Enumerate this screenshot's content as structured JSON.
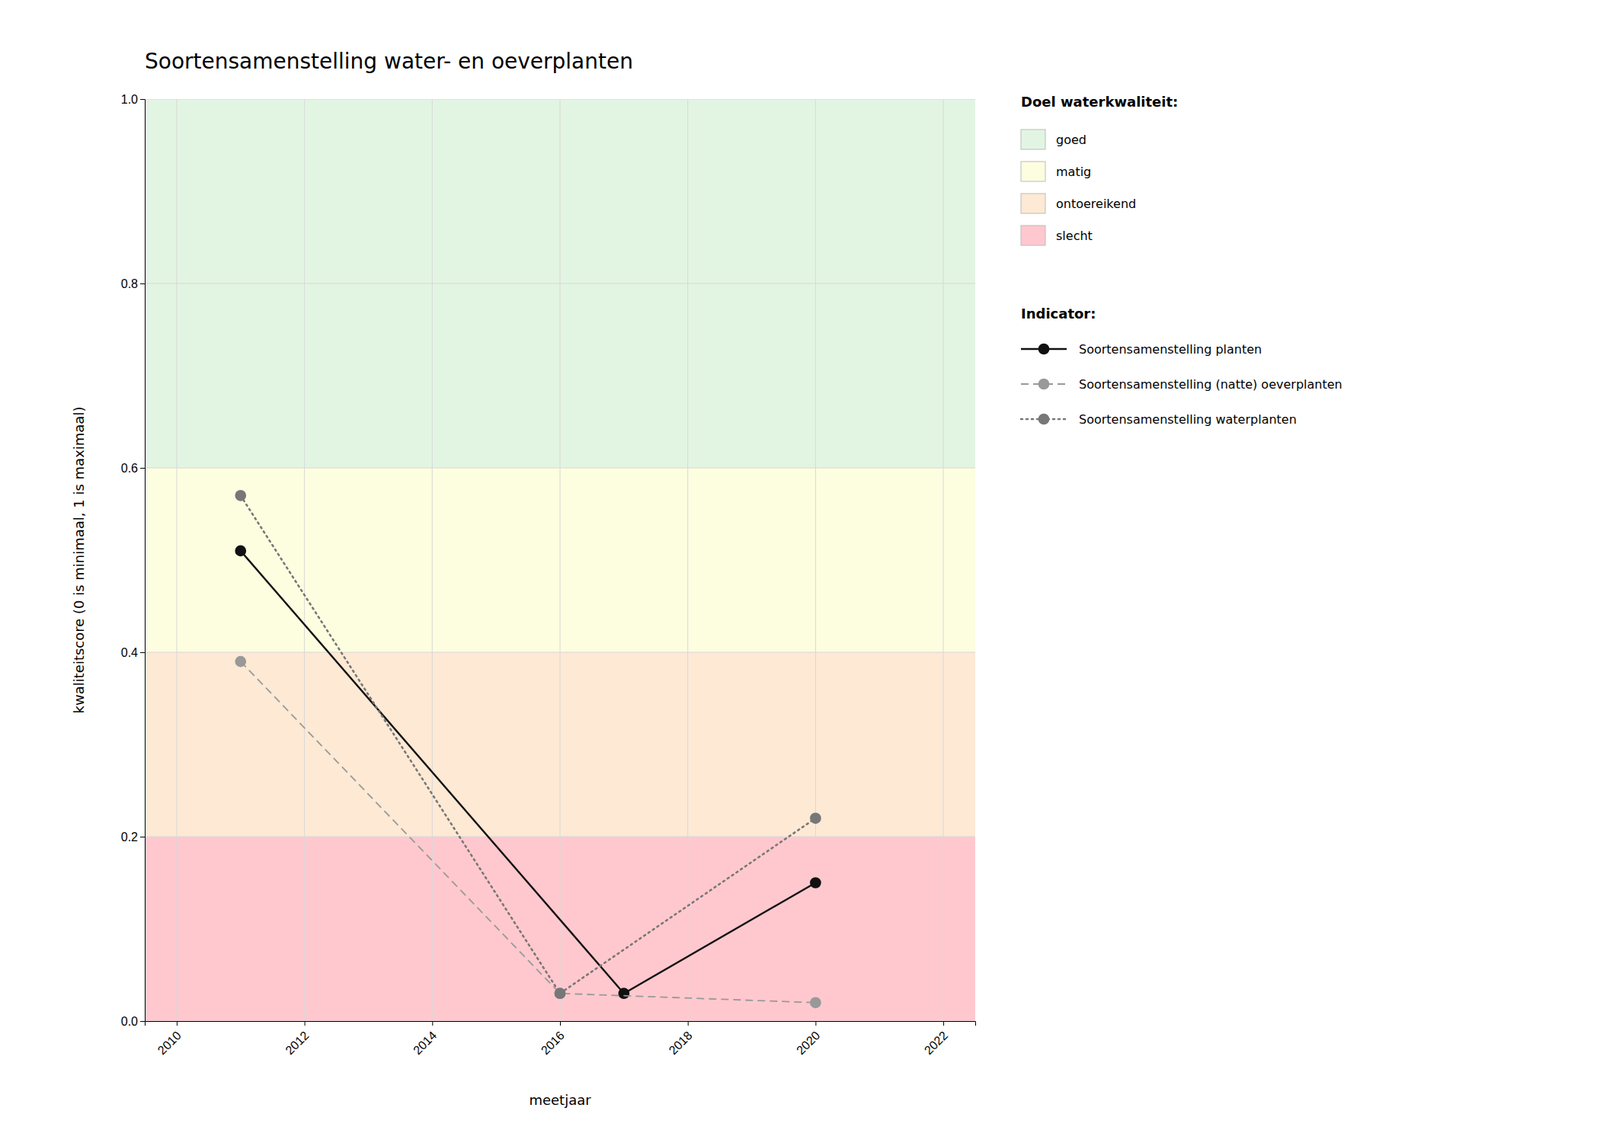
{
  "chart_data": {
    "type": "line",
    "title": "Soortensamenstelling water- en oeverplanten",
    "x_label": "meetjaar",
    "y_label": "kwaliteitscore (0 is minimaal, 1 is maximaal)",
    "xlim": [
      2009.5,
      2022.5
    ],
    "ylim": [
      0.0,
      1.0
    ],
    "xticks": [
      2010,
      2012,
      2014,
      2016,
      2018,
      2020,
      2022
    ],
    "yticks": [
      {
        "value": 0.0,
        "label": "0.0"
      },
      0.2,
      0.4,
      0.6,
      0.8,
      {
        "value": 1.0,
        "label": "1.0"
      }
    ],
    "grid": true,
    "bands_title": "Doel waterkwaliteit:",
    "bands": [
      {
        "name": "goed",
        "from": 0.6,
        "to": 1.0,
        "color": "#e2f5e2"
      },
      {
        "name": "matig",
        "from": 0.4,
        "to": 0.6,
        "color": "#fdfde0"
      },
      {
        "name": "ontoereikend",
        "from": 0.2,
        "to": 0.4,
        "color": "#fde9d4"
      },
      {
        "name": "slecht",
        "from": 0.0,
        "to": 0.2,
        "color": "#ffc8ce"
      }
    ],
    "legend_title": "Indicator:",
    "series": [
      {
        "name": "Soortensamenstelling planten",
        "color": "#111111",
        "line_style": "solid",
        "marker": "circle",
        "x": [
          2011,
          2017,
          2020
        ],
        "values": [
          0.51,
          0.03,
          0.15
        ]
      },
      {
        "name": "Soortensamenstelling (natte) oeverplanten",
        "color": "#999999",
        "line_style": "dashed",
        "marker": "circle",
        "x": [
          2011,
          2016,
          2020
        ],
        "values": [
          0.39,
          0.03,
          0.02
        ]
      },
      {
        "name": "Soortensamenstelling waterplanten",
        "color": "#777777",
        "line_style": "dotted",
        "marker": "circle",
        "x": [
          2011,
          2016,
          2020
        ],
        "values": [
          0.57,
          0.03,
          0.22
        ]
      }
    ]
  }
}
